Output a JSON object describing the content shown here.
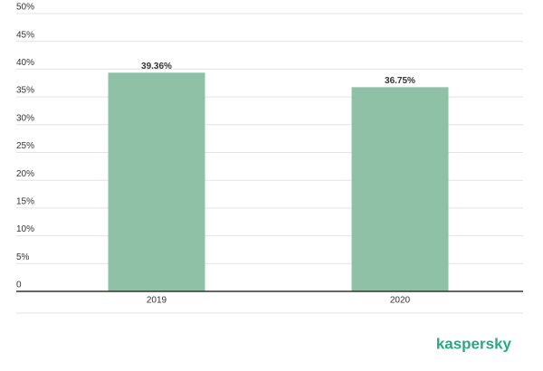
{
  "chart_data": {
    "type": "bar",
    "categories": [
      "2019",
      "2020"
    ],
    "values": [
      39.36,
      36.75
    ],
    "value_labels": [
      "39.36%",
      "36.75%"
    ],
    "color": "#8fc1a6",
    "ylim": [
      0,
      50
    ],
    "yticks": [
      0,
      {
        "value": 5,
        "label": "5%"
      },
      {
        "value": 10,
        "label": "10%"
      },
      {
        "value": 15,
        "label": "15%"
      },
      {
        "value": 20,
        "label": "20%"
      },
      {
        "value": 25,
        "label": "25%"
      },
      {
        "value": 30,
        "label": "30%"
      },
      {
        "value": 35,
        "label": "35%"
      },
      {
        "value": 40,
        "label": "40%"
      },
      {
        "value": 45,
        "label": "45%"
      },
      {
        "value": 50,
        "label": "50%"
      }
    ],
    "grid": true
  },
  "logo": "kaspersky"
}
